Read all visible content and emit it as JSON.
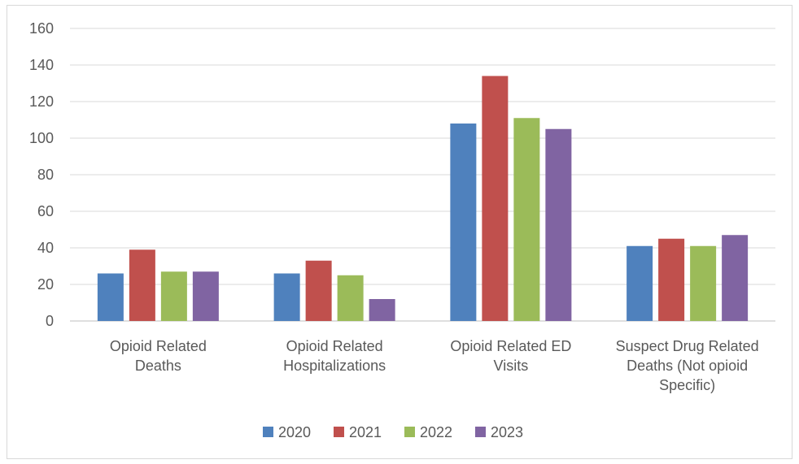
{
  "chart_data": {
    "type": "bar",
    "title": "",
    "xlabel": "",
    "ylabel": "",
    "ylim": [
      0,
      160
    ],
    "yticks": [
      0,
      20,
      40,
      60,
      80,
      100,
      120,
      140,
      160
    ],
    "grid": true,
    "legend_position": "bottom",
    "categories": [
      [
        "Opioid Related",
        "Deaths"
      ],
      [
        "Opioid Related",
        "Hospitalizations"
      ],
      [
        "Opioid Related ED",
        "Visits"
      ],
      [
        "Suspect Drug Related",
        "Deaths (Not opioid",
        "Specific)"
      ]
    ],
    "series": [
      {
        "name": "2020",
        "color": "#4f81bd",
        "values": [
          26,
          26,
          108,
          41
        ]
      },
      {
        "name": "2021",
        "color": "#c0504d",
        "values": [
          39,
          33,
          134,
          45
        ]
      },
      {
        "name": "2022",
        "color": "#9bbb59",
        "values": [
          27,
          25,
          111,
          41
        ]
      },
      {
        "name": "2023",
        "color": "#8064a2",
        "values": [
          27,
          12,
          105,
          47
        ]
      }
    ]
  }
}
